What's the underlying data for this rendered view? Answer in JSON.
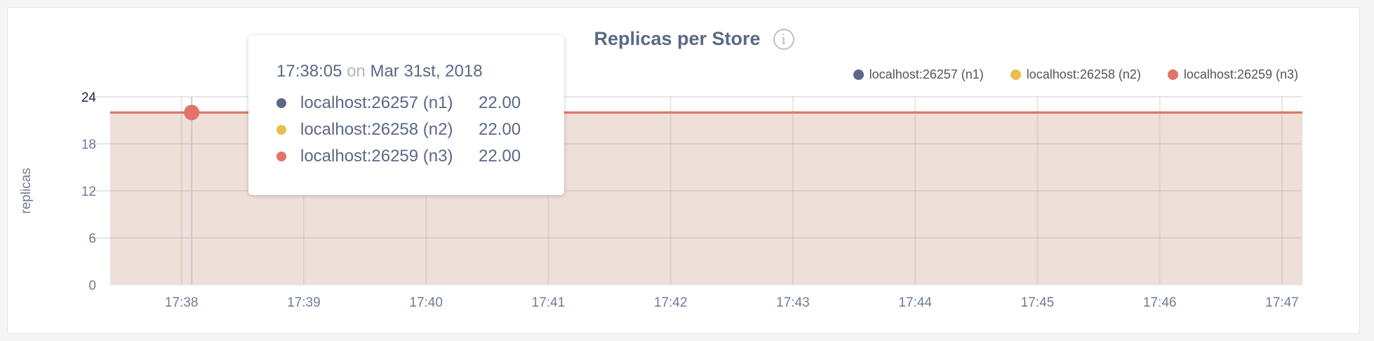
{
  "chart_data": {
    "type": "area",
    "title": "Replicas per Store",
    "info_icon": "info-icon",
    "ylabel": "replicas",
    "ylim": [
      0,
      24
    ],
    "yticks": [
      "0",
      "6",
      "12",
      "18",
      "24"
    ],
    "xlim": [
      "17:37:25",
      "17:47:10"
    ],
    "xticks": [
      "17:38",
      "17:39",
      "17:40",
      "17:41",
      "17:42",
      "17:43",
      "17:44",
      "17:45",
      "17:46",
      "17:47"
    ],
    "grid": true,
    "legend_position": "top-right",
    "series": [
      {
        "name": "localhost:26257 (n1)",
        "color": "#5b6885",
        "x": [
          "17:37:25",
          "17:47:10"
        ],
        "values": [
          22,
          22
        ]
      },
      {
        "name": "localhost:26258 (n2)",
        "color": "#e9c04a",
        "x": [
          "17:37:25",
          "17:47:10"
        ],
        "values": [
          22,
          22
        ]
      },
      {
        "name": "localhost:26259 (n3)",
        "color": "#e27368",
        "x": [
          "17:37:25",
          "17:47:10"
        ],
        "values": [
          22,
          22
        ]
      }
    ],
    "fill_color": "#eedfd9",
    "tooltip": {
      "time": "17:38:05",
      "on": "on",
      "date": "Mar 31st, 2018",
      "rows": [
        {
          "name": "localhost:26257 (n1)",
          "value": "22.00",
          "color": "#5b6885"
        },
        {
          "name": "localhost:26258 (n2)",
          "value": "22.00",
          "color": "#e9c04a"
        },
        {
          "name": "localhost:26259 (n3)",
          "value": "22.00",
          "color": "#e27368"
        }
      ]
    }
  }
}
